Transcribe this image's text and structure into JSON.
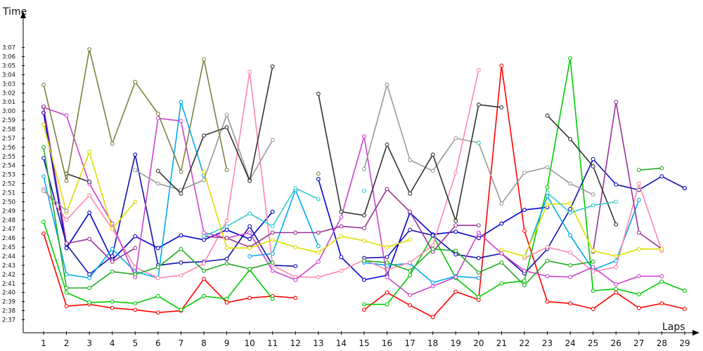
{
  "chart_data": {
    "type": "line",
    "ylabel": "Time",
    "xlabel": "Laps",
    "x": [
      1,
      2,
      3,
      4,
      5,
      6,
      7,
      8,
      9,
      10,
      11,
      12,
      13,
      14,
      15,
      16,
      17,
      18,
      19,
      20,
      21,
      22,
      23,
      24,
      25,
      26,
      27,
      28,
      29
    ],
    "y_tick_labels": [
      "2:37",
      "2:38",
      "2:39",
      "2:40",
      "2:41",
      "2:42",
      "2:43",
      "2:44",
      "2:45",
      "2:46",
      "2:47",
      "2:48",
      "2:49",
      "2:50",
      "2:51",
      "2:52",
      "2:53",
      "2:54",
      "2:55",
      "2:56",
      "2:57",
      "2:58",
      "2:59",
      "3:00",
      "3:01",
      "3:02",
      "3:03",
      "3:04",
      "3:05",
      "3:06",
      "3:07"
    ],
    "y_unit": "seconds",
    "ylim": [
      155.5,
      189
    ],
    "grid": false,
    "legend": "none",
    "series": [
      {
        "color": "#ff0000",
        "values": [
          166.5,
          158.5,
          158.7,
          158.3,
          158.1,
          157.8,
          158.0,
          161.5,
          158.9,
          159.4,
          159.6,
          159.4,
          null,
          null,
          158.1,
          160.0,
          158.6,
          157.3,
          160.1,
          159.2,
          185.0,
          166.8,
          159.0,
          158.8,
          158.2,
          160.0,
          158.3,
          158.8,
          158.2
        ]
      },
      {
        "color": "#00cc00",
        "values": [
          167.8,
          160.0,
          158.9,
          159.0,
          158.8,
          159.6,
          158.1,
          159.6,
          159.3,
          162.5,
          159.3,
          null,
          null,
          null,
          158.7,
          158.7,
          161.9,
          166.3,
          161.6,
          159.5,
          161.0,
          161.3,
          171.6,
          185.8,
          160.2,
          160.4,
          159.8,
          161.2,
          160.2
        ]
      },
      {
        "color": "#0000cc",
        "values": [
          179.8,
          164.9,
          168.8,
          163.6,
          166.2,
          164.9,
          166.3,
          165.8,
          166.9,
          165.9,
          168.9,
          null,
          172.5,
          163.9,
          161.4,
          161.9,
          168.8,
          166.4,
          166.7,
          166.0,
          167.6,
          169.1,
          169.4,
          null,
          null,
          null,
          null,
          null,
          null
        ]
      },
      {
        "color": "#1010b0",
        "values": [
          174.8,
          165.3,
          162.0,
          164.0,
          175.2,
          163.0,
          163.3,
          163.4,
          163.7,
          167.3,
          163.0,
          162.9,
          null,
          null,
          163.8,
          163.9,
          166.9,
          166.3,
          164.2,
          163.8,
          164.3,
          162.1,
          164.8,
          169.2,
          174.7,
          171.9,
          171.3,
          172.8,
          171.5
        ]
      },
      {
        "color": "#00aaee",
        "values": [
          172.8,
          162.0,
          161.6,
          164.8,
          162.3,
          161.6,
          181.0,
          172.9,
          null,
          164.0,
          164.3,
          171.3,
          165.1,
          null,
          163.3,
          163.0,
          163.2,
          161.1,
          161.8,
          161.6,
          null,
          163.8,
          170.6,
          166.3,
          162.5,
          163.5,
          170.2,
          null,
          null
        ]
      },
      {
        "color": "#ff88aa",
        "values": [
          171.4,
          168.0,
          170.7,
          167.0,
          162.8,
          161.6,
          161.9,
          163.2,
          167.9,
          184.3,
          163.0,
          161.7,
          161.7,
          162.4,
          163.6,
          162.5,
          163.3,
          165.2,
          173.2,
          184.5,
          null,
          163.8,
          165.0,
          164.4,
          162.3,
          162.8,
          172.0,
          164.6,
          null
        ]
      },
      {
        "color": "#cc44cc",
        "values": [
          180.4,
          179.5,
          172.0,
          167.6,
          161.7,
          179.2,
          178.9,
          166.6,
          166.0,
          166.6,
          162.4,
          161.4,
          163.4,
          168.3,
          177.2,
          161.7,
          159.7,
          160.7,
          161.7,
          166.6,
          164.3,
          162.4,
          161.8,
          161.7,
          162.8,
          160.9,
          161.8,
          161.8,
          null
        ]
      },
      {
        "color": "#993399",
        "values": [
          180.5,
          165.4,
          165.9,
          163.4,
          164.9,
          null,
          null,
          166.2,
          166.0,
          165.0,
          166.6,
          166.6,
          166.6,
          167.3,
          167.1,
          171.4,
          168.9,
          164.5,
          167.4,
          167.4,
          null,
          null,
          null,
          null,
          164.5,
          181.0,
          166.6,
          164.8,
          null
        ]
      },
      {
        "color": "#dddd00",
        "values": [
          178.5,
          168.8,
          175.5,
          167.0,
          170.0,
          null,
          null,
          173.3,
          164.9,
          164.9,
          165.8,
          165.0,
          164.4,
          166.2,
          165.7,
          165.0,
          165.8,
          null,
          168.0,
          null,
          164.7,
          164.0,
          169.7,
          169.8,
          164.6,
          164.0,
          164.8,
          164.8,
          null
        ]
      },
      {
        "color": "#999999",
        "values": [
          171.2,
          169.0,
          null,
          null,
          173.5,
          172.0,
          171.3,
          172.4,
          179.6,
          172.4,
          176.8,
          null,
          null,
          null,
          173.6,
          182.9,
          174.6,
          173.4,
          177.0,
          176.5,
          169.8,
          173.2,
          173.8,
          172.0,
          170.8,
          null,
          null,
          null,
          null
        ]
      },
      {
        "color": "#333333",
        "values": [
          null,
          173.1,
          172.2,
          null,
          null,
          173.4,
          170.9,
          177.3,
          178.2,
          172.3,
          184.9,
          null,
          181.9,
          168.9,
          168.5,
          176.3,
          170.9,
          175.2,
          167.9,
          180.7,
          180.4,
          null,
          179.5,
          176.9,
          173.9,
          167.5,
          null,
          null,
          null
        ]
      },
      {
        "color": "#808040",
        "values": [
          182.9,
          172.3,
          186.8,
          176.4,
          183.2,
          179.7,
          173.3,
          185.7,
          173.5,
          null,
          null,
          null,
          173.1,
          null,
          null,
          null,
          null,
          null,
          null,
          null,
          null,
          null,
          null,
          null,
          null,
          null,
          null,
          null,
          null
        ]
      },
      {
        "color": "#33cccc",
        "values": [
          null,
          null,
          null,
          null,
          null,
          null,
          null,
          166.2,
          167.3,
          168.7,
          167.3,
          171.5,
          170.3,
          null,
          171.2,
          null,
          null,
          null,
          null,
          176.5,
          null,
          null,
          171.0,
          168.8,
          169.6,
          170.0,
          null,
          null,
          null
        ]
      },
      {
        "color": "#0000cc",
        "values": [
          null,
          null,
          null,
          null,
          null,
          null,
          null,
          null,
          null,
          null,
          null,
          null,
          null,
          null,
          null,
          null,
          null,
          null,
          null,
          null,
          null,
          null,
          null,
          null,
          null,
          null,
          null,
          null,
          171.5
        ]
      },
      {
        "color": "#22aa22",
        "values": [
          176.0,
          160.5,
          160.5,
          162.3,
          162.0,
          162.8,
          164.8,
          162.4,
          163.2,
          162.6,
          163.3,
          null,
          null,
          null,
          163.5,
          163.3,
          162.4,
          164.8,
          164.6,
          162.2,
          163.3,
          160.8,
          163.5,
          163.0,
          163.4,
          null,
          173.5,
          173.7,
          null
        ]
      }
    ]
  }
}
